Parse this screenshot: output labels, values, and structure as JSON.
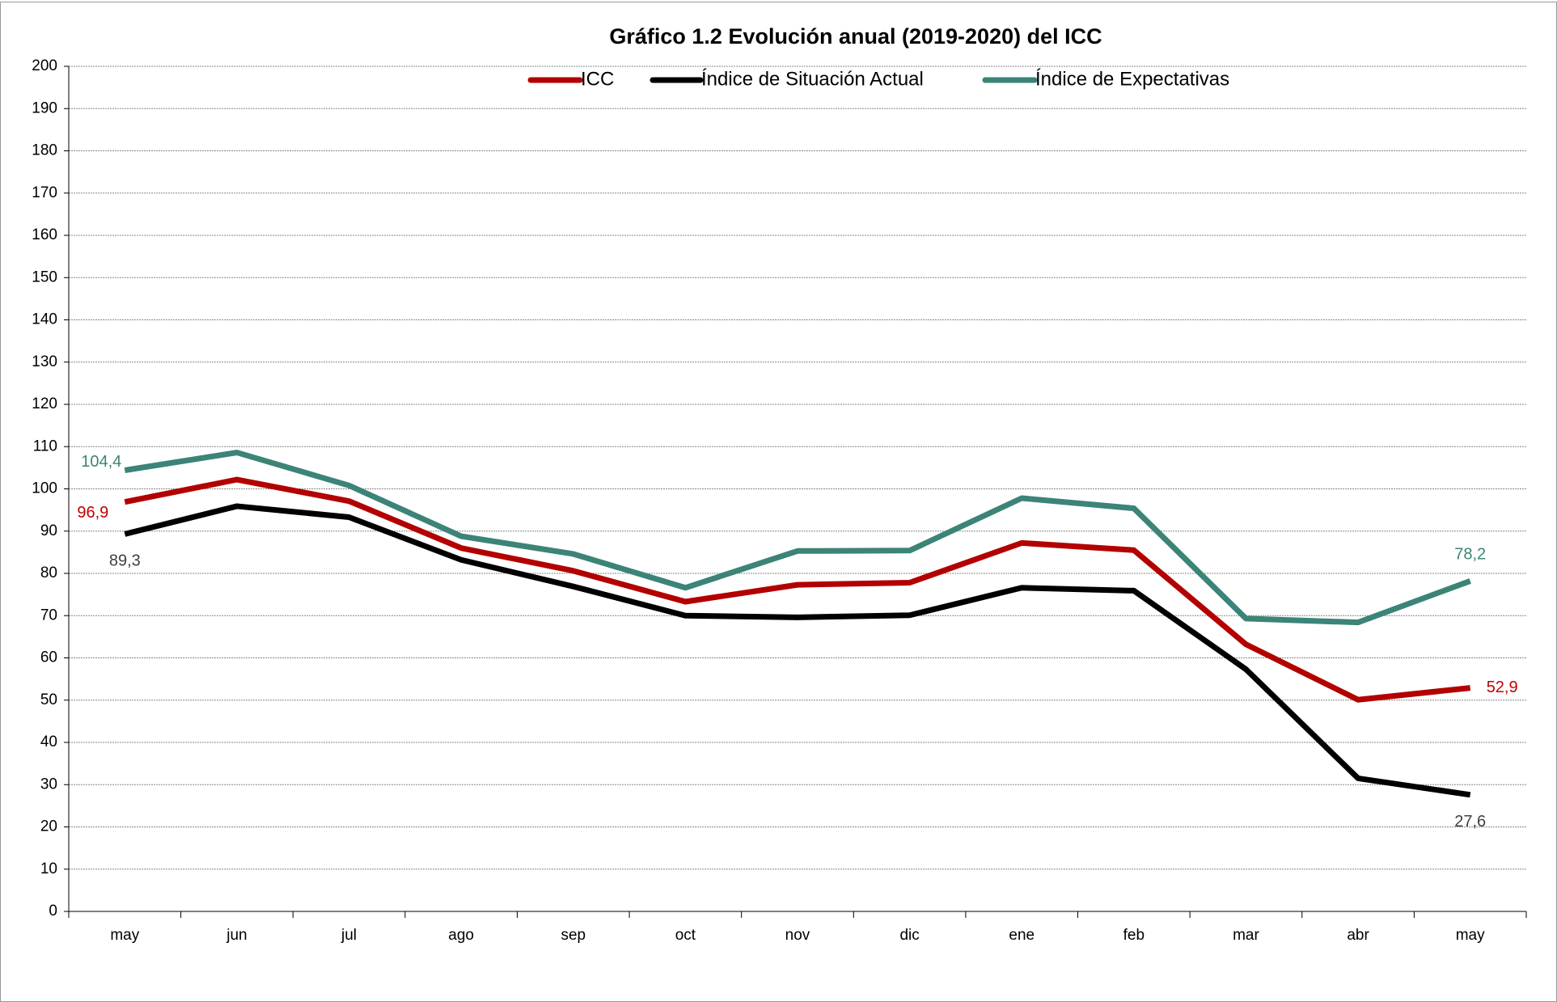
{
  "chart_data": {
    "type": "line",
    "title": "Gráfico 1.2 Evolución anual (2019-2020) del ICC",
    "categories": [
      "may",
      "jun",
      "jul",
      "ago",
      "sep",
      "oct",
      "nov",
      "dic",
      "ene",
      "feb",
      "mar",
      "abr",
      "may"
    ],
    "series": [
      {
        "name": "ICC",
        "color": "#b30000",
        "values": [
          96.9,
          102.2,
          97.1,
          86.0,
          80.6,
          73.3,
          77.3,
          77.8,
          87.2,
          85.5,
          63.2,
          50.1,
          52.9
        ],
        "value_labels": [
          "96,9",
          null,
          null,
          null,
          null,
          null,
          null,
          null,
          null,
          null,
          null,
          null,
          "52,9"
        ]
      },
      {
        "name": "Índice de Situación Actual",
        "color": "#000000",
        "values": [
          89.3,
          95.9,
          93.3,
          83.2,
          76.9,
          70.0,
          69.6,
          70.1,
          76.6,
          75.9,
          57.3,
          31.5,
          27.6
        ],
        "value_labels": [
          "89,3",
          null,
          null,
          null,
          null,
          null,
          null,
          null,
          null,
          null,
          null,
          null,
          "27,6"
        ]
      },
      {
        "name": "Índice de Expectativas",
        "color": "#3b8477",
        "values": [
          104.4,
          108.6,
          100.8,
          88.8,
          84.6,
          76.6,
          85.3,
          85.4,
          97.8,
          95.4,
          69.3,
          68.4,
          78.2
        ],
        "value_labels": [
          "104,4",
          null,
          null,
          null,
          null,
          null,
          null,
          null,
          null,
          null,
          null,
          null,
          "78,2"
        ]
      }
    ],
    "ylim": [
      0,
      200
    ],
    "yticks": [
      0,
      10,
      20,
      30,
      40,
      50,
      60,
      70,
      80,
      90,
      100,
      110,
      120,
      130,
      140,
      150,
      160,
      170,
      180,
      190,
      200
    ],
    "grid": true,
    "legend": "top"
  }
}
